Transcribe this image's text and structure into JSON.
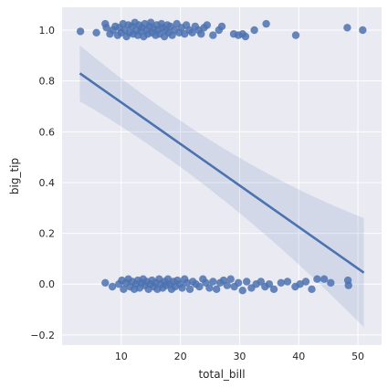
{
  "chart_data": {
    "type": "scatter",
    "title": "",
    "xlabel": "total_bill",
    "ylabel": "big_tip",
    "xlim": [
      0,
      54
    ],
    "ylim": [
      -0.24,
      1.09
    ],
    "xticks": [
      10,
      20,
      30,
      40,
      50
    ],
    "xtick_labels": [
      "10",
      "20",
      "30",
      "40",
      "50"
    ],
    "yticks": [
      -0.2,
      0.0,
      0.2,
      0.4,
      0.6,
      0.8,
      1.0
    ],
    "ytick_labels": [
      "−0.2",
      "0.0",
      "0.2",
      "0.4",
      "0.6",
      "0.8",
      "1.0"
    ],
    "grid": true,
    "legend": false,
    "colors": {
      "background": "#eaeaf2",
      "grid": "#ffffff",
      "points": "#4c72b0",
      "line": "#4c72b0",
      "band": "#4c72b0"
    },
    "regression": {
      "x": [
        3,
        51
      ],
      "y": [
        0.83,
        0.045
      ],
      "ci_lower": [
        0.71,
        -0.17
      ],
      "ci_upper": [
        0.94,
        0.26
      ]
    },
    "points": [
      {
        "x": 3.1,
        "y": 0.995
      },
      {
        "x": 5.8,
        "y": 0.99
      },
      {
        "x": 7.3,
        "y": 1.025
      },
      {
        "x": 7.5,
        "y": 1.01
      },
      {
        "x": 8.1,
        "y": 0.985
      },
      {
        "x": 8.6,
        "y": 1.0
      },
      {
        "x": 9.0,
        "y": 1.015
      },
      {
        "x": 9.4,
        "y": 0.98
      },
      {
        "x": 9.7,
        "y": 1.01
      },
      {
        "x": 10.0,
        "y": 0.99
      },
      {
        "x": 10.3,
        "y": 1.025
      },
      {
        "x": 10.6,
        "y": 1.0
      },
      {
        "x": 10.9,
        "y": 0.975
      },
      {
        "x": 11.2,
        "y": 1.02
      },
      {
        "x": 11.4,
        "y": 0.99
      },
      {
        "x": 11.8,
        "y": 1.015
      },
      {
        "x": 12.0,
        "y": 0.985
      },
      {
        "x": 12.3,
        "y": 1.03
      },
      {
        "x": 12.5,
        "y": 1.0
      },
      {
        "x": 12.8,
        "y": 0.98
      },
      {
        "x": 13.0,
        "y": 1.02
      },
      {
        "x": 13.3,
        "y": 0.995
      },
      {
        "x": 13.5,
        "y": 1.01
      },
      {
        "x": 13.8,
        "y": 0.975
      },
      {
        "x": 14.0,
        "y": 1.025
      },
      {
        "x": 14.3,
        "y": 1.0
      },
      {
        "x": 14.5,
        "y": 0.985
      },
      {
        "x": 14.8,
        "y": 1.015
      },
      {
        "x": 15.0,
        "y": 1.03
      },
      {
        "x": 15.2,
        "y": 0.99
      },
      {
        "x": 15.5,
        "y": 1.005
      },
      {
        "x": 15.8,
        "y": 0.98
      },
      {
        "x": 16.0,
        "y": 1.02
      },
      {
        "x": 16.2,
        "y": 1.0
      },
      {
        "x": 16.5,
        "y": 0.985
      },
      {
        "x": 16.8,
        "y": 1.025
      },
      {
        "x": 17.0,
        "y": 1.01
      },
      {
        "x": 17.3,
        "y": 0.975
      },
      {
        "x": 17.5,
        "y": 1.0
      },
      {
        "x": 17.8,
        "y": 1.02
      },
      {
        "x": 18.0,
        "y": 0.99
      },
      {
        "x": 18.3,
        "y": 1.015
      },
      {
        "x": 18.6,
        "y": 0.98
      },
      {
        "x": 19.0,
        "y": 1.0
      },
      {
        "x": 19.4,
        "y": 1.025
      },
      {
        "x": 19.8,
        "y": 0.99
      },
      {
        "x": 20.2,
        "y": 1.01
      },
      {
        "x": 20.7,
        "y": 0.985
      },
      {
        "x": 21.0,
        "y": 1.02
      },
      {
        "x": 21.5,
        "y": 1.0
      },
      {
        "x": 22.0,
        "y": 0.99
      },
      {
        "x": 22.5,
        "y": 1.015
      },
      {
        "x": 23.1,
        "y": 1.0
      },
      {
        "x": 23.5,
        "y": 0.985
      },
      {
        "x": 24.0,
        "y": 1.01
      },
      {
        "x": 24.5,
        "y": 1.02
      },
      {
        "x": 25.5,
        "y": 0.98
      },
      {
        "x": 26.5,
        "y": 1.0
      },
      {
        "x": 27.0,
        "y": 1.015
      },
      {
        "x": 29.0,
        "y": 0.985
      },
      {
        "x": 29.8,
        "y": 0.98
      },
      {
        "x": 30.5,
        "y": 0.985
      },
      {
        "x": 31.0,
        "y": 0.975
      },
      {
        "x": 32.5,
        "y": 1.0
      },
      {
        "x": 34.5,
        "y": 1.025
      },
      {
        "x": 39.5,
        "y": 0.98
      },
      {
        "x": 48.2,
        "y": 1.01
      },
      {
        "x": 50.8,
        "y": 1.0
      },
      {
        "x": 7.3,
        "y": 0.005
      },
      {
        "x": 8.5,
        "y": -0.01
      },
      {
        "x": 9.6,
        "y": 0.0
      },
      {
        "x": 10.1,
        "y": 0.015
      },
      {
        "x": 10.4,
        "y": -0.02
      },
      {
        "x": 10.8,
        "y": 0.005
      },
      {
        "x": 11.2,
        "y": 0.02
      },
      {
        "x": 11.5,
        "y": -0.01
      },
      {
        "x": 11.9,
        "y": 0.01
      },
      {
        "x": 12.2,
        "y": -0.02
      },
      {
        "x": 12.5,
        "y": 0.0
      },
      {
        "x": 12.8,
        "y": 0.015
      },
      {
        "x": 13.1,
        "y": -0.015
      },
      {
        "x": 13.4,
        "y": 0.005
      },
      {
        "x": 13.7,
        "y": 0.02
      },
      {
        "x": 14.0,
        "y": -0.005
      },
      {
        "x": 14.3,
        "y": 0.01
      },
      {
        "x": 14.6,
        "y": -0.02
      },
      {
        "x": 14.9,
        "y": 0.0
      },
      {
        "x": 15.2,
        "y": 0.015
      },
      {
        "x": 15.5,
        "y": -0.01
      },
      {
        "x": 15.8,
        "y": 0.005
      },
      {
        "x": 16.1,
        "y": -0.02
      },
      {
        "x": 16.4,
        "y": 0.02
      },
      {
        "x": 16.7,
        "y": 0.0
      },
      {
        "x": 17.0,
        "y": -0.015
      },
      {
        "x": 17.3,
        "y": 0.01
      },
      {
        "x": 17.6,
        "y": -0.005
      },
      {
        "x": 17.9,
        "y": 0.02
      },
      {
        "x": 18.2,
        "y": 0.0
      },
      {
        "x": 18.5,
        "y": -0.02
      },
      {
        "x": 18.8,
        "y": 0.01
      },
      {
        "x": 19.1,
        "y": -0.01
      },
      {
        "x": 19.5,
        "y": 0.015
      },
      {
        "x": 19.9,
        "y": 0.0
      },
      {
        "x": 20.3,
        "y": -0.015
      },
      {
        "x": 20.7,
        "y": 0.02
      },
      {
        "x": 21.1,
        "y": 0.005
      },
      {
        "x": 21.6,
        "y": -0.02
      },
      {
        "x": 22.1,
        "y": 0.01
      },
      {
        "x": 22.6,
        "y": 0.0
      },
      {
        "x": 23.2,
        "y": -0.01
      },
      {
        "x": 23.8,
        "y": 0.02
      },
      {
        "x": 24.3,
        "y": 0.005
      },
      {
        "x": 24.9,
        "y": -0.015
      },
      {
        "x": 25.5,
        "y": 0.01
      },
      {
        "x": 26.1,
        "y": -0.02
      },
      {
        "x": 26.7,
        "y": 0.005
      },
      {
        "x": 27.3,
        "y": 0.015
      },
      {
        "x": 27.9,
        "y": -0.005
      },
      {
        "x": 28.5,
        "y": 0.02
      },
      {
        "x": 29.1,
        "y": -0.01
      },
      {
        "x": 29.8,
        "y": 0.005
      },
      {
        "x": 30.5,
        "y": -0.025
      },
      {
        "x": 31.2,
        "y": 0.01
      },
      {
        "x": 32.0,
        "y": -0.015
      },
      {
        "x": 32.8,
        "y": 0.0
      },
      {
        "x": 33.6,
        "y": 0.01
      },
      {
        "x": 34.3,
        "y": -0.01
      },
      {
        "x": 35.0,
        "y": 0.0
      },
      {
        "x": 35.8,
        "y": -0.02
      },
      {
        "x": 37.0,
        "y": 0.005
      },
      {
        "x": 38.1,
        "y": 0.01
      },
      {
        "x": 39.4,
        "y": -0.01
      },
      {
        "x": 40.2,
        "y": 0.0
      },
      {
        "x": 41.2,
        "y": 0.01
      },
      {
        "x": 42.2,
        "y": -0.02
      },
      {
        "x": 43.1,
        "y": 0.02
      },
      {
        "x": 44.3,
        "y": 0.02
      },
      {
        "x": 45.4,
        "y": 0.005
      },
      {
        "x": 48.3,
        "y": 0.015
      },
      {
        "x": 48.4,
        "y": -0.005
      }
    ]
  }
}
